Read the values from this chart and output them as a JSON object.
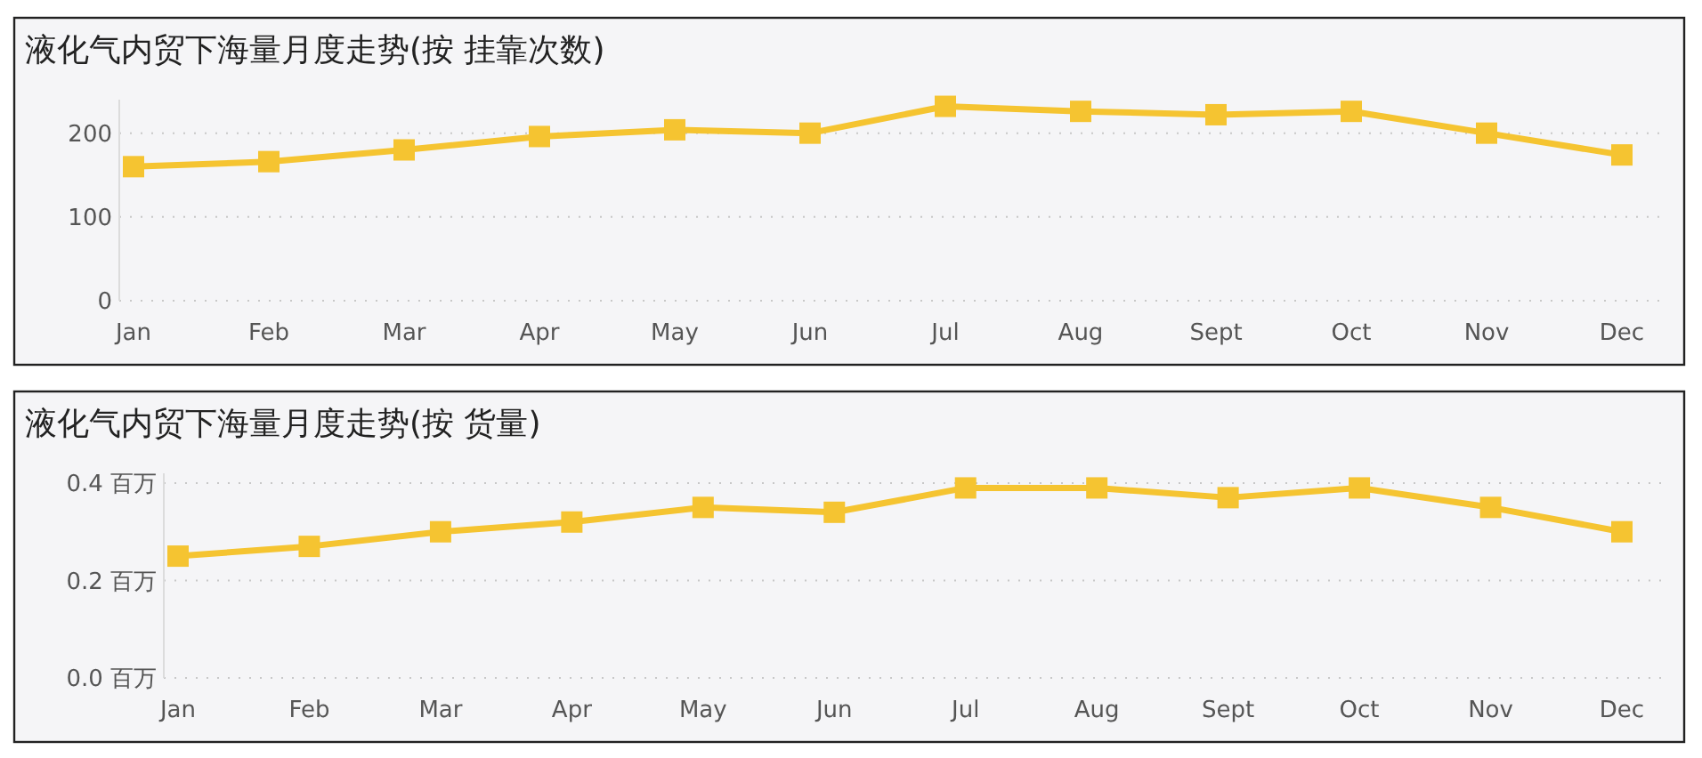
{
  "chart_data": [
    {
      "type": "line",
      "title": "液化气内贸下海量月度走势(按 挂靠次数)",
      "categories": [
        "Jan",
        "Feb",
        "Mar",
        "Apr",
        "May",
        "Jun",
        "Jul",
        "Aug",
        "Sept",
        "Oct",
        "Nov",
        "Dec"
      ],
      "series": [
        {
          "color": "#f5c431",
          "values": [
            160,
            166,
            180,
            196,
            204,
            200,
            232,
            226,
            222,
            226,
            200,
            174
          ]
        }
      ],
      "ylim": [
        0,
        240
      ],
      "yticks": [
        0,
        100,
        200
      ],
      "grid": "y",
      "marker": "square"
    },
    {
      "type": "line",
      "title": "液化气内贸下海量月度走势(按 货量)",
      "categories": [
        "Jan",
        "Feb",
        "Mar",
        "Apr",
        "May",
        "Jun",
        "Jul",
        "Aug",
        "Sept",
        "Oct",
        "Nov",
        "Dec"
      ],
      "series": [
        {
          "color": "#f5c431",
          "values": [
            0.25,
            0.27,
            0.3,
            0.32,
            0.35,
            0.34,
            0.39,
            0.39,
            0.37,
            0.39,
            0.35,
            0.3
          ]
        }
      ],
      "ylim": [
        0,
        0.42
      ],
      "yticks": [
        {
          "value": 0,
          "label": "0.0 百万"
        },
        {
          "value": 0.2,
          "label": "0.2 百万"
        },
        {
          "value": 0.4,
          "label": "0.4 百万"
        }
      ],
      "grid": "y",
      "marker": "square"
    }
  ]
}
